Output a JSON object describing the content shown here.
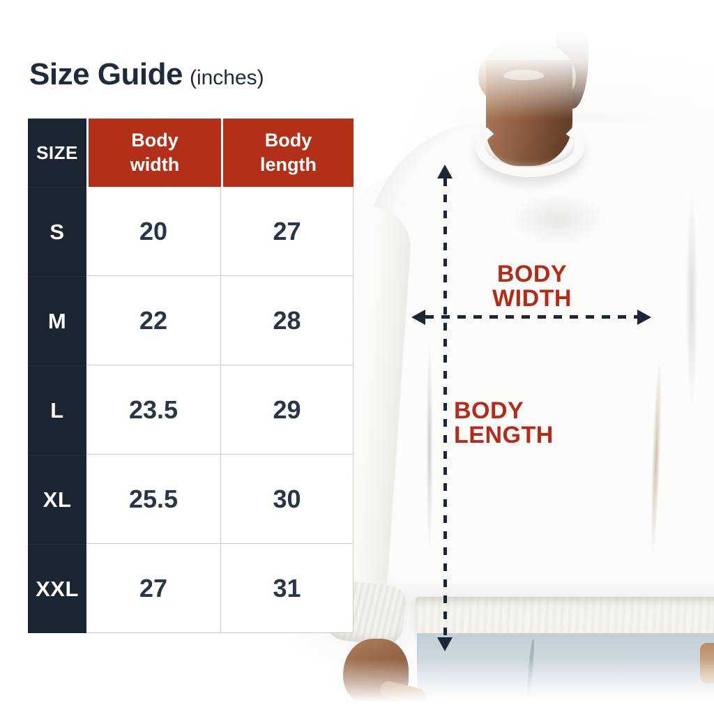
{
  "title": {
    "text": "Size Guide",
    "unit": "(inches)"
  },
  "size_table": {
    "unit": "inches",
    "header": {
      "size": "SIZE",
      "body_width": "Body\nwidth",
      "body_length": "Body\nlength"
    },
    "rows": [
      {
        "size": "S",
        "body_width": "20",
        "body_length": "27"
      },
      {
        "size": "M",
        "body_width": "22",
        "body_length": "28"
      },
      {
        "size": "L",
        "body_width": "23.5",
        "body_length": "29"
      },
      {
        "size": "XL",
        "body_width": "25.5",
        "body_length": "30"
      },
      {
        "size": "XXL",
        "body_width": "27",
        "body_length": "31"
      }
    ]
  },
  "diagram": {
    "width_label": "BODY\nWIDTH",
    "length_label": "BODY\nLENGTH"
  },
  "colors": {
    "accent_red": "#B23018",
    "label_red": "#B52A19",
    "dark_navy": "#1B2431",
    "title_navy": "#1F2B3B",
    "text_navy": "#2A3547",
    "cell_border": "#CBCBCB",
    "arrow_navy": "#1C2733"
  }
}
